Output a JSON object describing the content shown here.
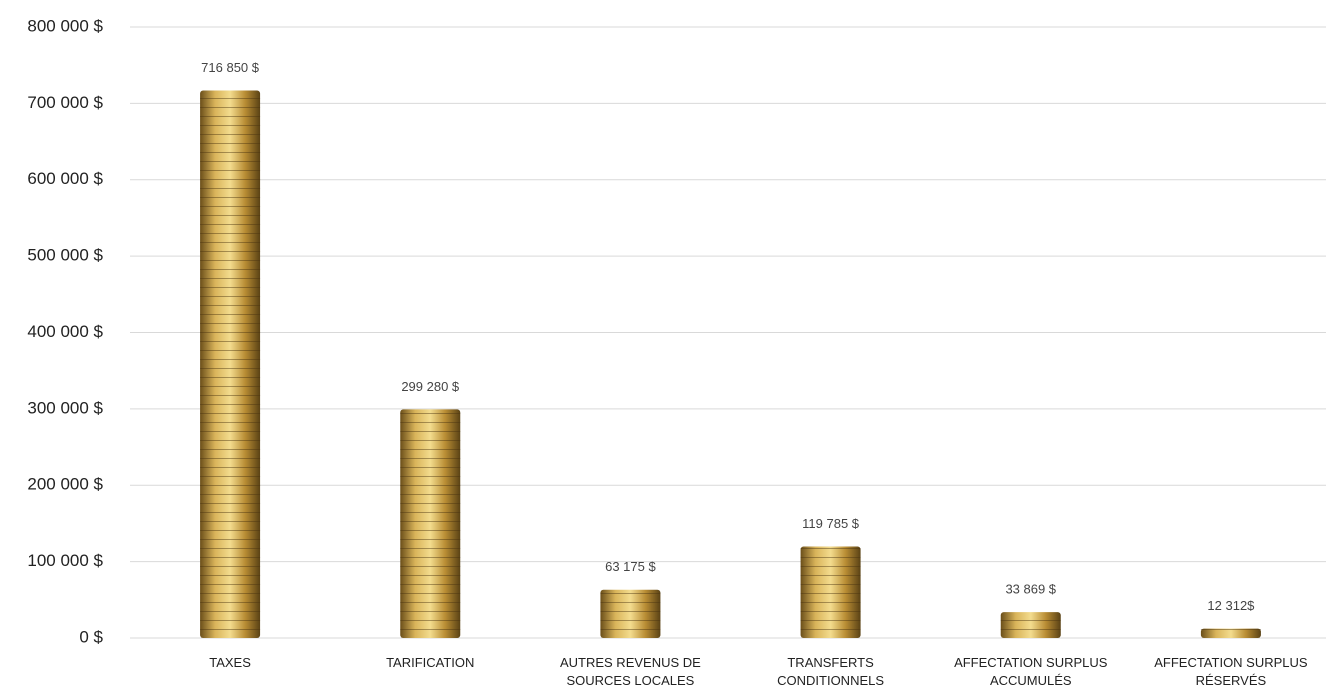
{
  "chart_data": {
    "type": "bar",
    "categories": [
      "TAXES",
      "TARIFICATION",
      "AUTRES REVENUS DE SOURCES LOCALES",
      "TRANSFERTS CONDITIONNELS",
      "AFFECTATION SURPLUS ACCUMULÉS",
      "AFFECTATION SURPLUS RÉSERVÉS"
    ],
    "values": [
      716850,
      299280,
      63175,
      119785,
      33869,
      12312
    ],
    "value_labels": [
      "716 850 $",
      "299 280 $",
      "63 175 $",
      "119 785 $",
      "33 869 $",
      "12 312$"
    ],
    "color": "#c9a24a",
    "ylim": [
      0,
      800000
    ],
    "yticks": [
      {
        "value": 0,
        "label": "0 $"
      },
      {
        "value": 100000,
        "label": "100 000 $"
      },
      {
        "value": 200000,
        "label": "200 000 $"
      },
      {
        "value": 300000,
        "label": "300 000 $"
      },
      {
        "value": 400000,
        "label": "400 000 $"
      },
      {
        "value": 500000,
        "label": "500 000 $"
      },
      {
        "value": 600000,
        "label": "600 000 $"
      },
      {
        "value": 700000,
        "label": "700 000 $"
      },
      {
        "value": 800000,
        "label": "800 000 $"
      }
    ],
    "grid": true
  }
}
